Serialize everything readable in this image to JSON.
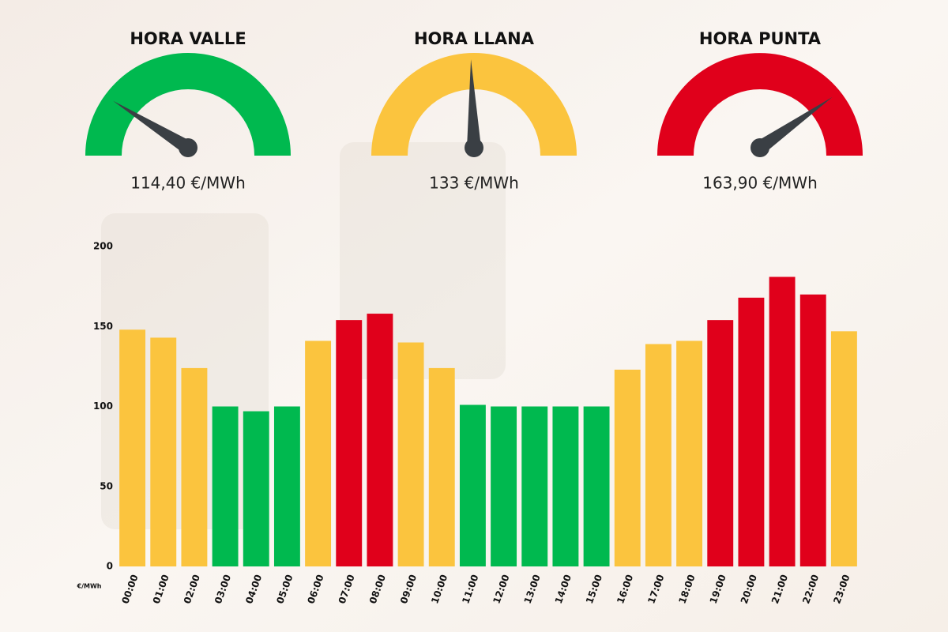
{
  "gauges": [
    {
      "title": "HORA VALLE",
      "value": "114,40 €/MWh",
      "color": "#00b94f"
    },
    {
      "title": "HORA LLANA",
      "value": "133 €/MWh",
      "color": "#fbc43e"
    },
    {
      "title": "HORA PUNTA",
      "value": "163,90 €/MWh",
      "color": "#e0001b"
    }
  ],
  "chart_data": {
    "type": "bar",
    "y_label": "€/MWh",
    "categories": [
      "00:00",
      "01:00",
      "02:00",
      "03:00",
      "04:00",
      "05:00",
      "06:00",
      "07:00",
      "08:00",
      "09:00",
      "10:00",
      "11:00",
      "12:00",
      "13:00",
      "14:00",
      "15:00",
      "16:00",
      "17:00",
      "18:00",
      "19:00",
      "20:00",
      "21:00",
      "22:00",
      "23:00"
    ],
    "values": [
      148,
      143,
      124,
      100,
      97,
      100,
      141,
      154,
      158,
      140,
      124,
      101,
      100,
      100,
      100,
      100,
      123,
      139,
      141,
      154,
      168,
      181,
      170,
      147
    ],
    "colors": [
      "#fbc43e",
      "#fbc43e",
      "#fbc43e",
      "#00b94f",
      "#00b94f",
      "#00b94f",
      "#fbc43e",
      "#e0001b",
      "#e0001b",
      "#fbc43e",
      "#fbc43e",
      "#00b94f",
      "#00b94f",
      "#00b94f",
      "#00b94f",
      "#00b94f",
      "#fbc43e",
      "#fbc43e",
      "#fbc43e",
      "#e0001b",
      "#e0001b",
      "#e0001b",
      "#e0001b",
      "#fbc43e"
    ],
    "ylim": [
      0,
      200
    ],
    "yticks": [
      0,
      50,
      100,
      150,
      200
    ],
    "grid": false
  }
}
